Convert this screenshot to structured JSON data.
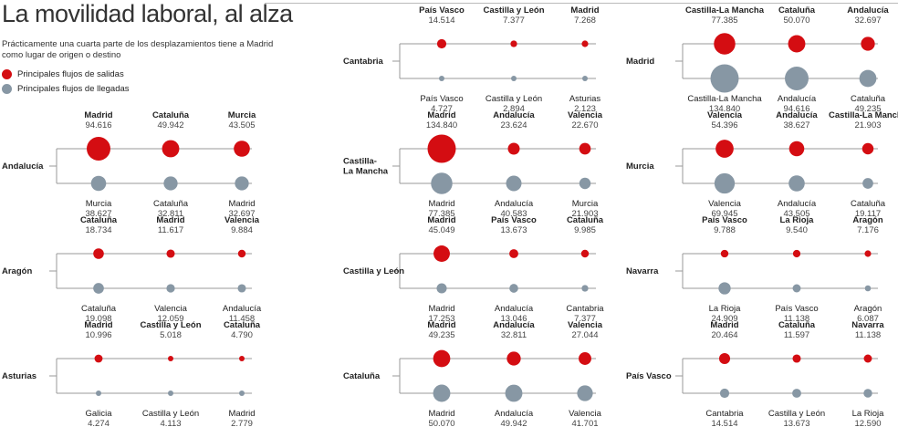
{
  "header": {
    "title": "La movilidad laboral, al alza",
    "subtitle": "Prácticamente una cuarta parte de los desplazamientos tiene a Madrid como lugar de origen o destino"
  },
  "legend": {
    "out_label": "Principales flujos de salidas",
    "in_label": "Principales flujos de llegadas",
    "out_color": "#d40d12",
    "in_color": "#8797a4"
  },
  "chart_data": {
    "type": "bubble-flow",
    "title": "La movilidad laboral, al alza",
    "regions": [
      {
        "name": "Andalucía",
        "col": 0,
        "row": 0,
        "out": [
          {
            "name": "Madrid",
            "value": "94.616"
          },
          {
            "name": "Cataluña",
            "value": "49.942"
          },
          {
            "name": "Murcia",
            "value": "43.505"
          }
        ],
        "in": [
          {
            "name": "Murcia",
            "value": "38.627"
          },
          {
            "name": "Cataluña",
            "value": "32.811"
          },
          {
            "name": "Madrid",
            "value": "32.697"
          }
        ]
      },
      {
        "name": "Aragón",
        "col": 0,
        "row": 1,
        "out": [
          {
            "name": "Cataluña",
            "value": "18.734"
          },
          {
            "name": "Madrid",
            "value": "11.617"
          },
          {
            "name": "Valencia",
            "value": "9.884"
          }
        ],
        "in": [
          {
            "name": "Cataluña",
            "value": "19.098"
          },
          {
            "name": "Valencia",
            "value": "12.059"
          },
          {
            "name": "Andalucía",
            "value": "11.458"
          }
        ]
      },
      {
        "name": "Asturias",
        "col": 0,
        "row": 2,
        "out": [
          {
            "name": "Madrid",
            "value": "10.996"
          },
          {
            "name": "Castilla y León",
            "value": "5.018"
          },
          {
            "name": "Cataluña",
            "value": "4.790"
          }
        ],
        "in": [
          {
            "name": "Galicia",
            "value": "4.274"
          },
          {
            "name": "Castilla y León",
            "value": "4.113"
          },
          {
            "name": "Madrid",
            "value": "2.779"
          }
        ]
      },
      {
        "name": "Cantabria",
        "col": 1,
        "row": -1,
        "out": [
          {
            "name": "País Vasco",
            "value": "14.514"
          },
          {
            "name": "Castilla y León",
            "value": "7.377"
          },
          {
            "name": "Madrid",
            "value": "7.268"
          }
        ],
        "in": [
          {
            "name": "País Vasco",
            "value": "4.727"
          },
          {
            "name": "Castilla y León",
            "value": "2.894"
          },
          {
            "name": "Asturias",
            "value": "2.123"
          }
        ]
      },
      {
        "name": "Castilla-La Mancha",
        "col": 1,
        "row": 0,
        "out": [
          {
            "name": "Madrid",
            "value": "134.840"
          },
          {
            "name": "Andalucía",
            "value": "23.624"
          },
          {
            "name": "Valencia",
            "value": "22.670"
          }
        ],
        "in": [
          {
            "name": "Madrid",
            "value": "77.385"
          },
          {
            "name": "Andalucía",
            "value": "40.583"
          },
          {
            "name": "Murcia",
            "value": "21.903"
          }
        ]
      },
      {
        "name": "Castilla y León",
        "col": 1,
        "row": 1,
        "out": [
          {
            "name": "Madrid",
            "value": "45.049"
          },
          {
            "name": "País Vasco",
            "value": "13.673"
          },
          {
            "name": "Cataluña",
            "value": "9.985"
          }
        ],
        "in": [
          {
            "name": "Madrid",
            "value": "17.253"
          },
          {
            "name": "Andalucía",
            "value": "13.046"
          },
          {
            "name": "Cantabria",
            "value": "7.377"
          }
        ]
      },
      {
        "name": "Cataluña",
        "col": 1,
        "row": 2,
        "out": [
          {
            "name": "Madrid",
            "value": "49.235"
          },
          {
            "name": "Andalucía",
            "value": "32.811"
          },
          {
            "name": "Valencia",
            "value": "27.044"
          }
        ],
        "in": [
          {
            "name": "Madrid",
            "value": "50.070"
          },
          {
            "name": "Andalucía",
            "value": "49.942"
          },
          {
            "name": "Valencia",
            "value": "41.701"
          }
        ]
      },
      {
        "name": "Madrid",
        "col": 2,
        "row": -1,
        "out": [
          {
            "name": "Castilla-La Mancha",
            "value": "77.385"
          },
          {
            "name": "Cataluña",
            "value": "50.070"
          },
          {
            "name": "Andalucía",
            "value": "32.697"
          }
        ],
        "in": [
          {
            "name": "Castilla-La Mancha",
            "value": "134.840"
          },
          {
            "name": "Andalucía",
            "value": "94.616"
          },
          {
            "name": "Cataluña",
            "value": "49.235"
          }
        ]
      },
      {
        "name": "Murcia",
        "col": 2,
        "row": 0,
        "out": [
          {
            "name": "Valencia",
            "value": "54.396"
          },
          {
            "name": "Andalucía",
            "value": "38.627"
          },
          {
            "name": "Castilla-La Mancha",
            "value": "21.903"
          }
        ],
        "in": [
          {
            "name": "Valencia",
            "value": "69.945"
          },
          {
            "name": "Andalucía",
            "value": "43.505"
          },
          {
            "name": "Cataluña",
            "value": "19.117"
          }
        ]
      },
      {
        "name": "Navarra",
        "col": 2,
        "row": 1,
        "out": [
          {
            "name": "País Vasco",
            "value": "9.788"
          },
          {
            "name": "La Rioja",
            "value": "9.540"
          },
          {
            "name": "Aragón",
            "value": "7.176"
          }
        ],
        "in": [
          {
            "name": "La Rioja",
            "value": "24.909"
          },
          {
            "name": "País Vasco",
            "value": "11.138"
          },
          {
            "name": "Aragón",
            "value": "6.087"
          }
        ]
      },
      {
        "name": "País Vasco",
        "col": 2,
        "row": 2,
        "out": [
          {
            "name": "Madrid",
            "value": "20.464"
          },
          {
            "name": "Cataluña",
            "value": "11.597"
          },
          {
            "name": "Navarra",
            "value": "11.138"
          }
        ],
        "in": [
          {
            "name": "Cantabria",
            "value": "14.514"
          },
          {
            "name": "Castilla y León",
            "value": "13.673"
          },
          {
            "name": "La Rioja",
            "value": "12.590"
          }
        ]
      }
    ]
  }
}
